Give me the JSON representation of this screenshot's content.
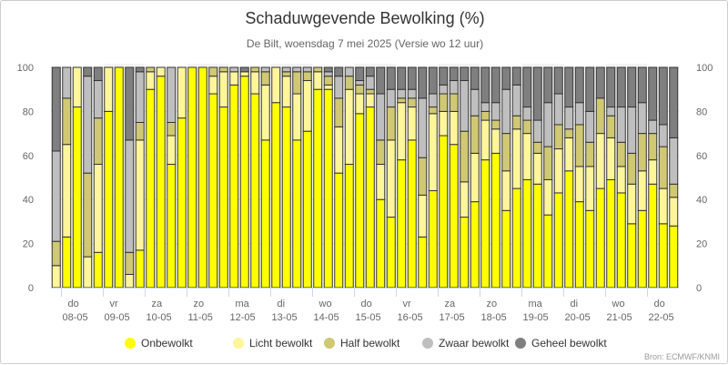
{
  "chart_data": {
    "type": "bar",
    "stacked": true,
    "title": "Schaduwgevende Bewolking (%)",
    "subtitle": "De Bilt, woensdag 7 mei 2025 (Versie wo 12 uur)",
    "credit": "Bron: ECMWF/KNMI",
    "ylim": [
      0,
      100
    ],
    "yticks": [
      0,
      20,
      40,
      60,
      80,
      100
    ],
    "xlabel": "",
    "ylabel": "",
    "legend_position": "bottom",
    "grid": true,
    "days": [
      {
        "dow": "do",
        "date": "08-05"
      },
      {
        "dow": "vr",
        "date": "09-05"
      },
      {
        "dow": "za",
        "date": "10-05"
      },
      {
        "dow": "zo",
        "date": "11-05"
      },
      {
        "dow": "ma",
        "date": "12-05"
      },
      {
        "dow": "di",
        "date": "13-05"
      },
      {
        "dow": "wo",
        "date": "14-05"
      },
      {
        "dow": "do",
        "date": "15-05"
      },
      {
        "dow": "vr",
        "date": "16-05"
      },
      {
        "dow": "za",
        "date": "17-05"
      },
      {
        "dow": "zo",
        "date": "18-05"
      },
      {
        "dow": "ma",
        "date": "19-05"
      },
      {
        "dow": "di",
        "date": "20-05"
      },
      {
        "dow": "wo",
        "date": "21-05"
      },
      {
        "dow": "do",
        "date": "22-05"
      }
    ],
    "series": [
      {
        "name": "Onbewolkt",
        "color": "#ffff00",
        "values": [
          0,
          23,
          82,
          0,
          16,
          80,
          100,
          0,
          17,
          90,
          96,
          56,
          77,
          100,
          100,
          88,
          82,
          92,
          96,
          88,
          67,
          84,
          82,
          67,
          71,
          90,
          90,
          52,
          56,
          79,
          82,
          40,
          32,
          58,
          67,
          23,
          44,
          69,
          65,
          32,
          39,
          58,
          61,
          35,
          45,
          49,
          47,
          33,
          43,
          53,
          39,
          35,
          45,
          49,
          43,
          29,
          35,
          47,
          29,
          28
        ]
      },
      {
        "name": "Licht bewolkt",
        "color": "#fff59a",
        "values": [
          10,
          42,
          18,
          14,
          40,
          20,
          0,
          6,
          50,
          8,
          4,
          13,
          23,
          0,
          0,
          8,
          16,
          6,
          2,
          10,
          25,
          16,
          14,
          21,
          23,
          8,
          2,
          21,
          34,
          9,
          6,
          16,
          35,
          26,
          15,
          19,
          35,
          11,
          15,
          16,
          22,
          18,
          11,
          18,
          27,
          21,
          14,
          16,
          20,
          15,
          16,
          20,
          25,
          19,
          12,
          18,
          18,
          11,
          16,
          13
        ]
      },
      {
        "name": "Half bewolkt",
        "color": "#d0c873",
        "values": [
          11,
          21,
          0,
          38,
          21,
          0,
          0,
          10,
          8,
          2,
          0,
          6,
          0,
          0,
          0,
          4,
          2,
          0,
          0,
          2,
          6,
          0,
          2,
          10,
          4,
          2,
          4,
          13,
          6,
          4,
          2,
          11,
          15,
          2,
          4,
          17,
          3,
          8,
          8,
          23,
          17,
          4,
          4,
          17,
          6,
          6,
          5,
          15,
          11,
          4,
          19,
          11,
          16,
          10,
          11,
          14,
          17,
          12,
          19,
          6
        ]
      },
      {
        "name": "Zwaar bewolkt",
        "color": "#bfbfbf",
        "values": [
          41,
          14,
          0,
          44,
          17,
          0,
          0,
          51,
          23,
          0,
          0,
          25,
          0,
          0,
          0,
          0,
          0,
          2,
          0,
          0,
          2,
          0,
          2,
          2,
          2,
          0,
          2,
          10,
          4,
          2,
          6,
          21,
          8,
          4,
          4,
          27,
          6,
          4,
          6,
          23,
          12,
          4,
          8,
          20,
          14,
          6,
          10,
          20,
          14,
          10,
          10,
          14,
          0,
          4,
          16,
          21,
          14,
          6,
          10,
          21
        ]
      },
      {
        "name": "Geheel bewolkt",
        "color": "#7f7f7f",
        "values": [
          38,
          0,
          0,
          4,
          6,
          0,
          0,
          33,
          2,
          0,
          0,
          0,
          0,
          0,
          0,
          0,
          0,
          0,
          2,
          0,
          0,
          0,
          0,
          0,
          0,
          0,
          2,
          4,
          0,
          6,
          4,
          12,
          10,
          10,
          10,
          14,
          12,
          8,
          6,
          6,
          10,
          16,
          16,
          10,
          8,
          18,
          24,
          16,
          12,
          18,
          16,
          20,
          14,
          18,
          18,
          18,
          16,
          24,
          26,
          32
        ]
      }
    ]
  }
}
